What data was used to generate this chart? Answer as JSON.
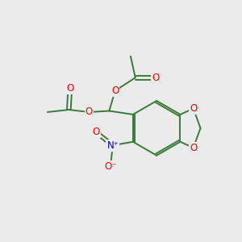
{
  "background_color": "#ebebeb",
  "bond_color": "#3a7a3a",
  "O_color": "#ff0000",
  "N_color": "#0000cc",
  "figsize": [
    3.0,
    3.0
  ],
  "dpi": 100,
  "xlim": [
    0,
    10
  ],
  "ylim": [
    0,
    10
  ]
}
